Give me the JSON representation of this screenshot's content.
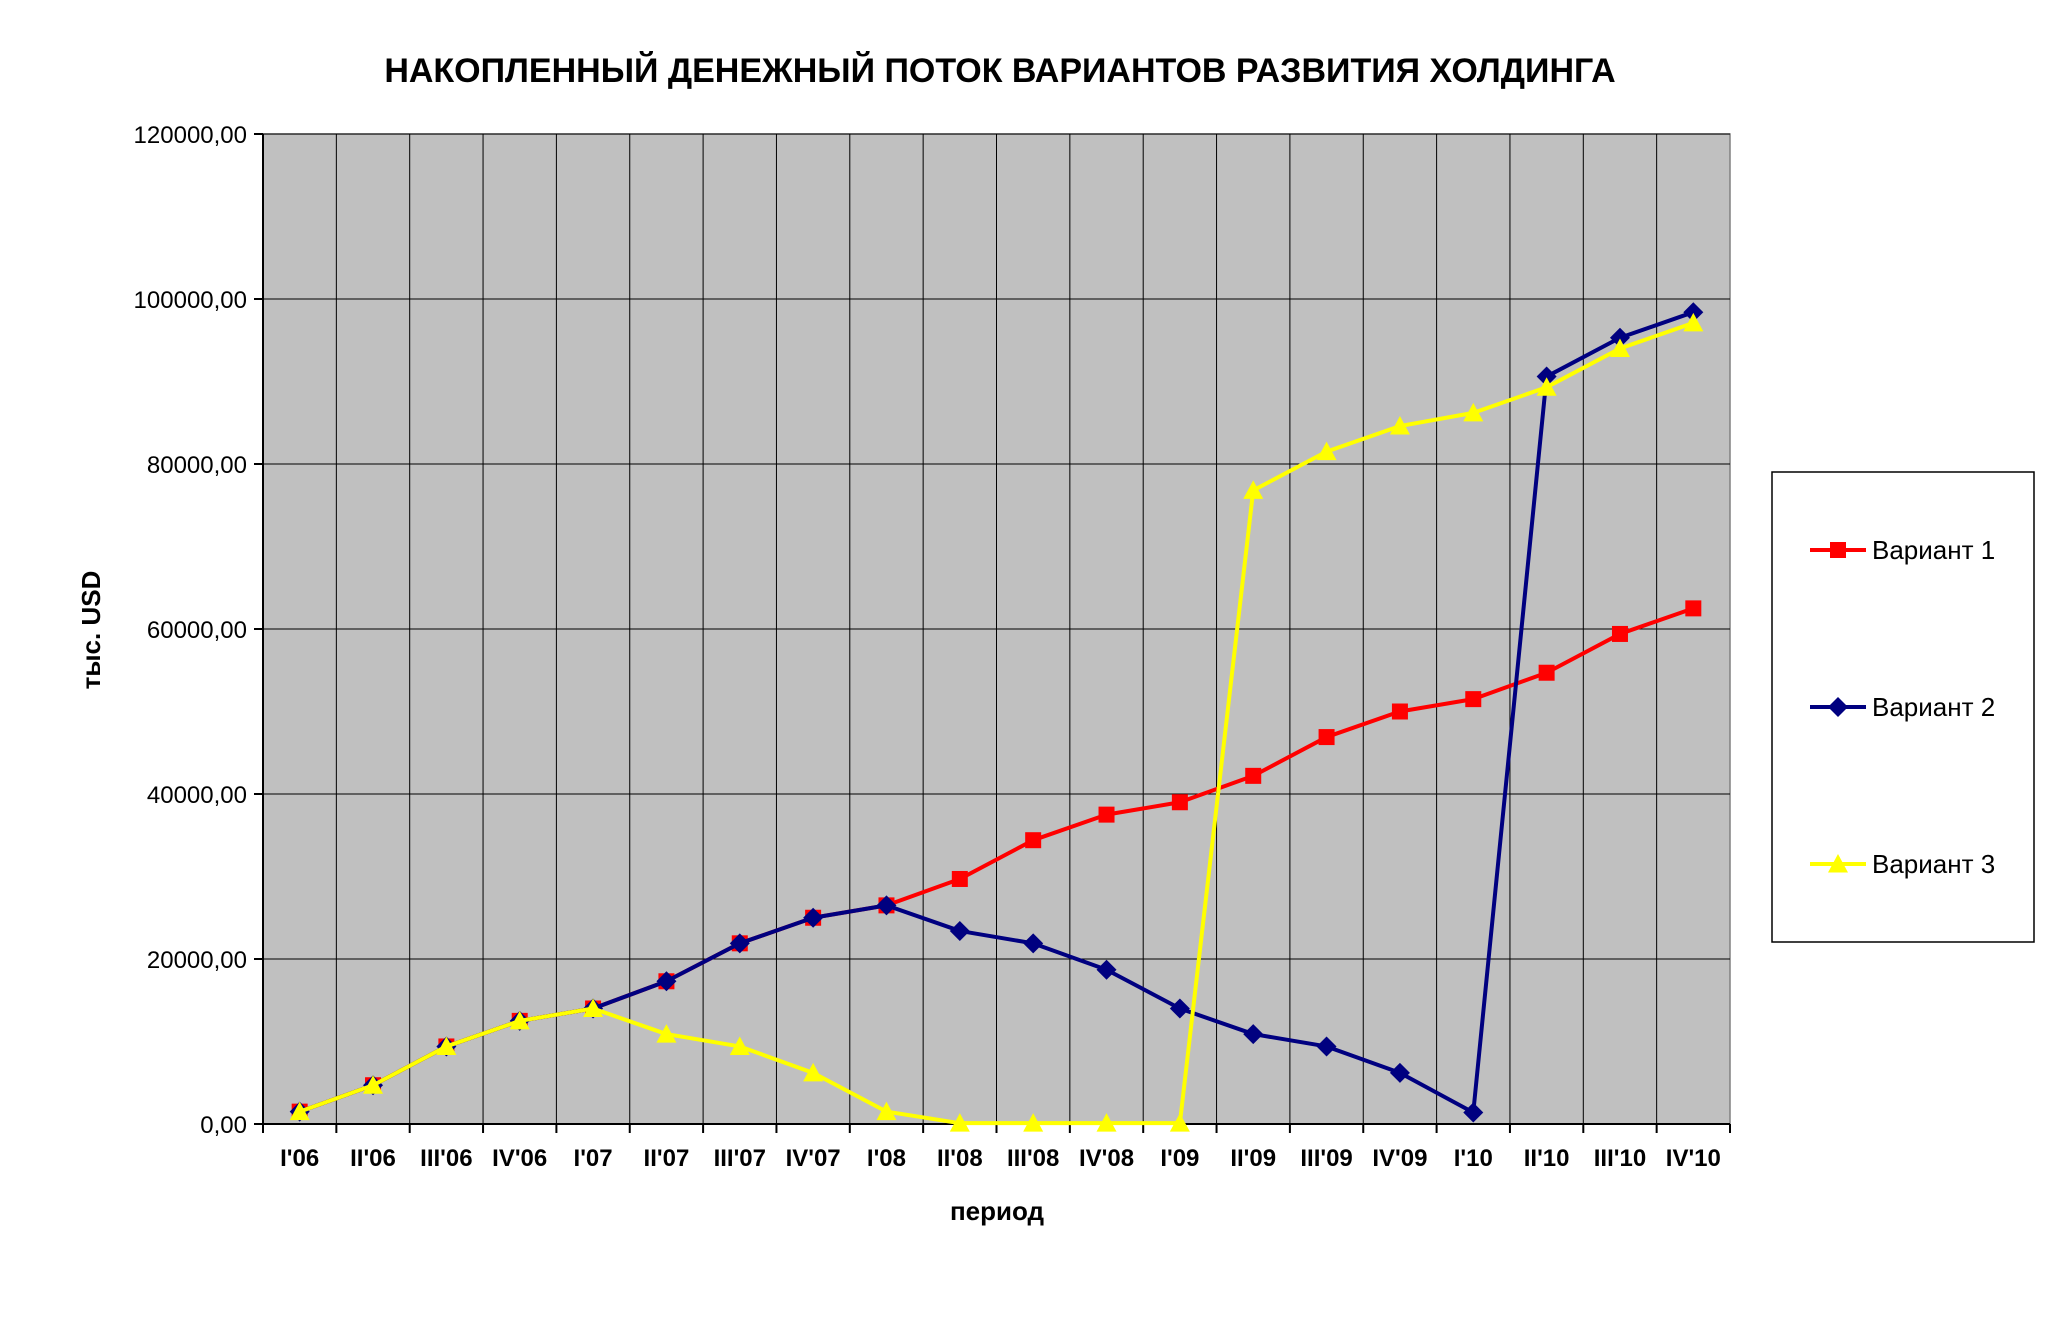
{
  "chart_data": {
    "type": "line",
    "title": "НАКОПЛЕННЫЙ ДЕНЕЖНЫЙ ПОТОК ВАРИАНТОВ РАЗВИТИЯ ХОЛДИНГА",
    "xlabel": "период",
    "ylabel": "тыс.  USD",
    "ylim": [
      0,
      120000
    ],
    "yticks": [
      0,
      20000,
      40000,
      60000,
      80000,
      100000,
      120000
    ],
    "ytick_labels": [
      "0,00",
      "20000,00",
      "40000,00",
      "60000,00",
      "80000,00",
      "100000,00",
      "120000,00"
    ],
    "grid": true,
    "legend": "right",
    "plot_background": "#c0c0c0",
    "categories": [
      "I'06",
      "II'06",
      "III'06",
      "IV'06",
      "I'07",
      "II'07",
      "III'07",
      "IV'07",
      "I'08",
      "II'08",
      "III'08",
      "IV'08",
      "I'09",
      "II'09",
      "III'09",
      "IV'09",
      "I'10",
      "II'10",
      "III'10",
      "IV'10"
    ],
    "series": [
      {
        "name": "Вариант 1",
        "color": "#ff0000",
        "marker": "square",
        "values": [
          1500,
          4700,
          9400,
          12500,
          14000,
          17300,
          21900,
          25000,
          26500,
          29700,
          34400,
          37500,
          39000,
          42200,
          46900,
          50000,
          51500,
          54700,
          59400,
          62500
        ]
      },
      {
        "name": "Вариант 2",
        "color": "#000080",
        "marker": "diamond",
        "values": [
          1500,
          4700,
          9400,
          12500,
          14000,
          17300,
          21900,
          25000,
          26500,
          23400,
          21900,
          18700,
          14000,
          10900,
          9400,
          6200,
          1400,
          90600,
          95300,
          98400
        ]
      },
      {
        "name": "Вариант 3",
        "color": "#ffff00",
        "marker": "triangle",
        "values": [
          1500,
          4700,
          9400,
          12500,
          14000,
          10900,
          9400,
          6200,
          1500,
          100,
          100,
          100,
          100,
          76800,
          81500,
          84600,
          86200,
          89300,
          94000,
          97100
        ]
      }
    ]
  }
}
